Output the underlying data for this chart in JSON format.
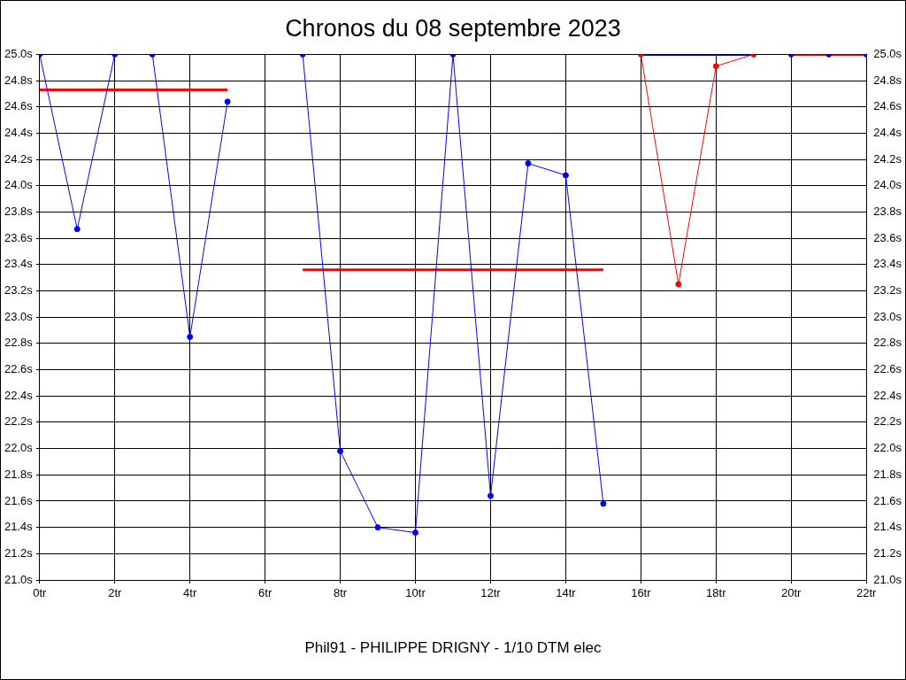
{
  "chart_data": {
    "type": "line",
    "title": "Chronos du 08 septembre 2023",
    "xlabel": "Phil91 - PHILIPPE DRIGNY - 1/10 DTM elec",
    "xlim": [
      0,
      22
    ],
    "xticks": [
      {
        "value": 0,
        "label": "0tr"
      },
      {
        "value": 2,
        "label": "2tr"
      },
      {
        "value": 4,
        "label": "4tr"
      },
      {
        "value": 6,
        "label": "6tr"
      },
      {
        "value": 8,
        "label": "8tr"
      },
      {
        "value": 10,
        "label": "10tr"
      },
      {
        "value": 12,
        "label": "12tr"
      },
      {
        "value": 14,
        "label": "14tr"
      },
      {
        "value": 16,
        "label": "16tr"
      },
      {
        "value": 18,
        "label": "18tr"
      },
      {
        "value": 20,
        "label": "20tr"
      },
      {
        "value": 22,
        "label": "22tr"
      }
    ],
    "ylim": [
      21.0,
      25.0
    ],
    "yticks": [
      {
        "value": 21.0,
        "label": "21.0s"
      },
      {
        "value": 21.2,
        "label": "21.2s"
      },
      {
        "value": 21.4,
        "label": "21.4s"
      },
      {
        "value": 21.6,
        "label": "21.6s"
      },
      {
        "value": 21.8,
        "label": "21.8s"
      },
      {
        "value": 22.0,
        "label": "22.0s"
      },
      {
        "value": 22.2,
        "label": "22.2s"
      },
      {
        "value": 22.4,
        "label": "22.4s"
      },
      {
        "value": 22.6,
        "label": "22.6s"
      },
      {
        "value": 22.8,
        "label": "22.8s"
      },
      {
        "value": 23.0,
        "label": "23.0s"
      },
      {
        "value": 23.2,
        "label": "23.2s"
      },
      {
        "value": 23.4,
        "label": "23.4s"
      },
      {
        "value": 23.6,
        "label": "23.6s"
      },
      {
        "value": 23.8,
        "label": "23.8s"
      },
      {
        "value": 24.0,
        "label": "24.0s"
      },
      {
        "value": 24.2,
        "label": "24.2s"
      },
      {
        "value": 24.4,
        "label": "24.4s"
      },
      {
        "value": 24.6,
        "label": "24.6s"
      },
      {
        "value": 24.8,
        "label": "24.8s"
      },
      {
        "value": 25.0,
        "label": "25.0s"
      }
    ],
    "y2lim": [
      21.0,
      25.0
    ],
    "y2ticks": [
      {
        "value": 21.0,
        "label": "21.0s"
      },
      {
        "value": 21.2,
        "label": "21.2s"
      },
      {
        "value": 21.4,
        "label": "21.4s"
      },
      {
        "value": 21.6,
        "label": "21.6s"
      },
      {
        "value": 21.8,
        "label": "21.8s"
      },
      {
        "value": 22.0,
        "label": "22.0s"
      },
      {
        "value": 22.2,
        "label": "22.2s"
      },
      {
        "value": 22.4,
        "label": "22.4s"
      },
      {
        "value": 22.6,
        "label": "22.6s"
      },
      {
        "value": 22.8,
        "label": "22.8s"
      },
      {
        "value": 23.0,
        "label": "23.0s"
      },
      {
        "value": 23.2,
        "label": "23.2s"
      },
      {
        "value": 23.4,
        "label": "23.4s"
      },
      {
        "value": 23.6,
        "label": "23.6s"
      },
      {
        "value": 23.8,
        "label": "23.8s"
      },
      {
        "value": 24.0,
        "label": "24.0s"
      },
      {
        "value": 24.2,
        "label": "24.2s"
      },
      {
        "value": 24.4,
        "label": "24.4s"
      },
      {
        "value": 24.6,
        "label": "24.6s"
      },
      {
        "value": 24.8,
        "label": "24.8s"
      },
      {
        "value": 25.0,
        "label": "25.0s"
      }
    ],
    "grid": true,
    "legend": false,
    "series": [
      {
        "type": "line",
        "color": "#0000ff",
        "marker": "circle",
        "x": [
          0,
          1,
          2,
          3,
          4,
          5,
          6,
          7,
          8,
          9,
          10,
          11,
          12,
          13,
          14,
          15,
          16,
          17,
          18,
          19,
          20,
          21,
          22
        ],
        "values": [
          25.0,
          23.67,
          25.0,
          25.0,
          22.85,
          24.64,
          null,
          25.0,
          21.98,
          21.4,
          21.36,
          25.0,
          21.64,
          24.17,
          24.08,
          21.58,
          null,
          null,
          null,
          null,
          25.0,
          25.0,
          25.0
        ]
      },
      {
        "type": "line",
        "color": "#ff0000",
        "marker": "circle",
        "x": [
          16,
          17,
          18,
          19
        ],
        "values": [
          25.0,
          23.25,
          24.91,
          25.0
        ]
      },
      {
        "type": "line",
        "color": "#ff0000",
        "marker": "none",
        "x": [
          0,
          5
        ],
        "values": [
          24.73,
          24.73
        ]
      },
      {
        "type": "line",
        "color": "#ff0000",
        "marker": "none",
        "x": [
          7,
          15
        ],
        "values": [
          23.36,
          23.36
        ]
      },
      {
        "type": "line",
        "color": "#ff0000",
        "marker": "none",
        "x": [
          20,
          22
        ],
        "values": [
          25.0,
          25.0
        ]
      },
      {
        "type": "line",
        "color": "#0000ff",
        "marker": "none",
        "x": [
          16,
          19
        ],
        "values": [
          25.0,
          25.0
        ]
      }
    ]
  }
}
